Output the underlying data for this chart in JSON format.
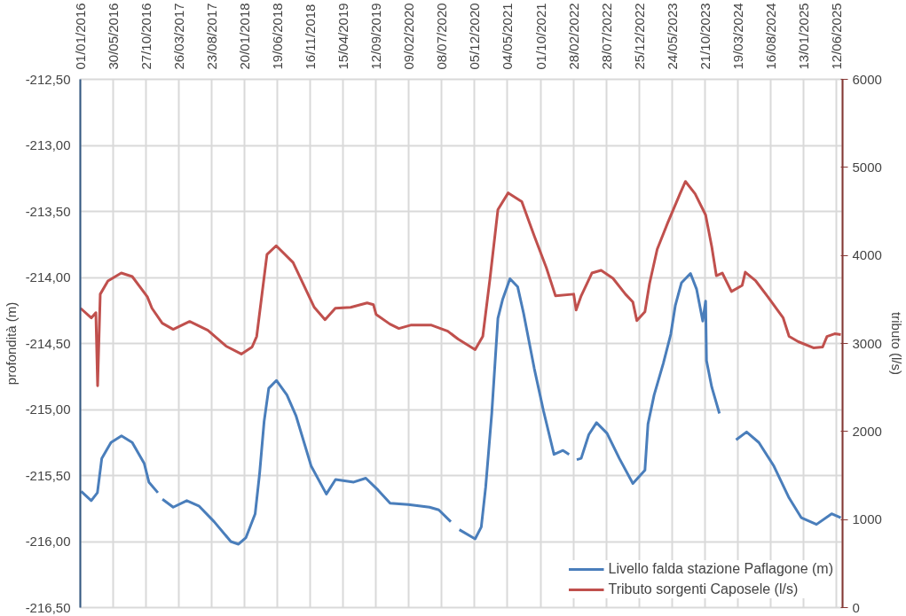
{
  "chart_data": {
    "type": "line",
    "ylabel": "profondità (m)",
    "y2label": "tributo (l/s)",
    "xlim": [
      "2016-01-01",
      "2025-07-11"
    ],
    "xticks": [
      {
        "value": "2016-01-01",
        "label": "01/01/2016"
      },
      {
        "value": "2016-05-30",
        "label": "30/05/2016"
      },
      {
        "value": "2016-10-27",
        "label": "27/10/2016"
      },
      {
        "value": "2017-03-26",
        "label": "26/03/2017"
      },
      {
        "value": "2017-08-23",
        "label": "23/08/2017"
      },
      {
        "value": "2018-01-20",
        "label": "20/01/2018"
      },
      {
        "value": "2018-06-19",
        "label": "19/06/2018"
      },
      {
        "value": "2018-11-16",
        "label": "16/11/2018"
      },
      {
        "value": "2019-04-15",
        "label": "15/04/2019"
      },
      {
        "value": "2019-09-12",
        "label": "12/09/2019"
      },
      {
        "value": "2020-02-09",
        "label": "09/02/2020"
      },
      {
        "value": "2020-07-08",
        "label": "08/07/2020"
      },
      {
        "value": "2020-12-05",
        "label": "05/12/2020"
      },
      {
        "value": "2021-05-04",
        "label": "04/05/2021"
      },
      {
        "value": "2021-10-01",
        "label": "01/10/2021"
      },
      {
        "value": "2022-02-28",
        "label": "28/02/2022"
      },
      {
        "value": "2022-07-28",
        "label": "28/07/2022"
      },
      {
        "value": "2022-12-25",
        "label": "25/12/2022"
      },
      {
        "value": "2023-05-24",
        "label": "24/05/2023"
      },
      {
        "value": "2023-10-21",
        "label": "21/10/2023"
      },
      {
        "value": "2024-03-19",
        "label": "19/03/2024"
      },
      {
        "value": "2024-08-16",
        "label": "16/08/2024"
      },
      {
        "value": "2025-01-13",
        "label": "13/01/2025"
      },
      {
        "value": "2025-06-12",
        "label": "12/06/2025"
      }
    ],
    "ylim": [
      -216.5,
      -212.5
    ],
    "yticks": [
      {
        "value": -216.5,
        "label": "-216,50"
      },
      {
        "value": -216.0,
        "label": "-216,00"
      },
      {
        "value": -215.5,
        "label": "-215,50"
      },
      {
        "value": -215.0,
        "label": "-215,00"
      },
      {
        "value": -214.5,
        "label": "-214,50"
      },
      {
        "value": -214.0,
        "label": "-214,00"
      },
      {
        "value": -213.5,
        "label": "-213,50"
      },
      {
        "value": -213.0,
        "label": "-213,00"
      },
      {
        "value": -212.5,
        "label": "-212,50"
      }
    ],
    "y2lim": [
      0,
      6000
    ],
    "y2ticks": [
      0,
      1000,
      2000,
      3000,
      4000,
      5000,
      6000
    ],
    "grid": true,
    "legend": "bottom right",
    "series": [
      {
        "name": "Livello falda stazione Paflagone (m)",
        "color": "#4a7ebb",
        "x": [
          "2016-01-05",
          "2016-02-20",
          "2016-03-19",
          "2016-04-08",
          "2016-05-20",
          "2016-07-07",
          "2016-08-25",
          "2016-10-19",
          "2016-11-09",
          "2016-12-20",
          "2016-12-30",
          "2017-01-10",
          "2017-02-28",
          "2017-05-01",
          "2017-06-25",
          "2017-09-03",
          "2017-11-18",
          "2017-12-23",
          "2018-01-26",
          "2018-03-09",
          "2018-03-29",
          "2018-04-19",
          "2018-05-10",
          "2018-06-14",
          "2018-08-01",
          "2018-09-12",
          "2018-11-20",
          "2019-01-28",
          "2019-03-11",
          "2019-06-02",
          "2019-07-27",
          "2019-09-21",
          "2019-11-15",
          "2020-02-06",
          "2020-05-13",
          "2020-06-24",
          "2020-08-18",
          "2020-09-06",
          "2020-09-26",
          "2020-12-07",
          "2021-01-04",
          "2021-01-24",
          "2021-02-21",
          "2021-03-21",
          "2021-04-11",
          "2021-05-15",
          "2021-06-19",
          "2021-07-16",
          "2021-09-03",
          "2021-10-15",
          "2021-12-02",
          "2022-01-12",
          "2022-02-09",
          "2022-02-28",
          "2022-03-16",
          "2022-04-05",
          "2022-05-10",
          "2022-06-14",
          "2022-08-01",
          "2022-09-26",
          "2022-11-27",
          "2023-01-21",
          "2023-02-04",
          "2023-03-04",
          "2023-04-15",
          "2023-05-19",
          "2023-06-09",
          "2023-07-07",
          "2023-08-17",
          "2023-09-14",
          "2023-10-12",
          "2023-10-25",
          "2023-10-29",
          "2023-11-22",
          "2023-12-27",
          "2024-02-03",
          "2024-03-12",
          "2024-04-29",
          "2024-06-24",
          "2024-09-01",
          "2024-11-09",
          "2025-01-04",
          "2025-03-14",
          "2025-05-22",
          "2025-07-03"
        ],
        "values": [
          -215.62,
          -215.69,
          -215.63,
          -215.37,
          -215.25,
          -215.2,
          -215.25,
          -215.41,
          -215.55,
          -215.63,
          null,
          -215.68,
          -215.74,
          -215.69,
          -215.73,
          -215.85,
          -216.0,
          -216.02,
          -215.97,
          -215.79,
          -215.49,
          -215.09,
          -214.84,
          -214.78,
          -214.89,
          -215.05,
          -215.43,
          -215.64,
          -215.53,
          -215.55,
          -215.52,
          -215.61,
          -215.71,
          -215.72,
          -215.74,
          -215.76,
          -215.85,
          null,
          -215.91,
          -215.98,
          -215.89,
          -215.59,
          -215.03,
          -214.31,
          -214.17,
          -214.01,
          -214.07,
          -214.27,
          -214.69,
          -215.01,
          -215.34,
          -215.31,
          -215.34,
          null,
          -215.38,
          -215.37,
          -215.19,
          -215.1,
          -215.18,
          -215.37,
          -215.56,
          -215.46,
          -215.11,
          -214.89,
          -214.65,
          -214.43,
          -214.21,
          -214.04,
          -213.97,
          -214.09,
          -214.33,
          -214.18,
          -214.63,
          -214.83,
          -215.03,
          null,
          -215.23,
          -215.17,
          -215.25,
          -215.43,
          -215.67,
          -215.82,
          -215.87,
          -215.79,
          -215.82
        ]
      },
      {
        "name": "Tributo sorgenti Caposele (l/s)",
        "color": "#c0504d",
        "axis": "y2",
        "x": [
          "2016-01-02",
          "2016-02-20",
          "2016-03-12",
          "2016-03-20",
          "2016-04-01",
          "2016-05-06",
          "2016-07-06",
          "2016-08-25",
          "2016-11-02",
          "2016-11-23",
          "2017-01-09",
          "2017-02-28",
          "2017-05-14",
          "2017-08-05",
          "2017-10-27",
          "2018-01-05",
          "2018-02-23",
          "2018-03-16",
          "2018-05-02",
          "2018-06-13",
          "2018-08-29",
          "2018-12-04",
          "2019-01-22",
          "2019-03-10",
          "2019-05-19",
          "2019-08-02",
          "2019-08-31",
          "2019-09-12",
          "2019-11-14",
          "2019-12-25",
          "2020-02-20",
          "2020-05-19",
          "2020-08-04",
          "2020-09-20",
          "2020-12-07",
          "2021-01-11",
          "2021-02-13",
          "2021-03-21",
          "2021-05-07",
          "2021-07-08",
          "2021-09-03",
          "2021-10-28",
          "2021-12-09",
          "2022-03-02",
          "2022-03-13",
          "2022-04-05",
          "2022-05-24",
          "2022-07-05",
          "2022-08-28",
          "2022-10-24",
          "2022-11-27",
          "2022-12-15",
          "2023-01-21",
          "2023-02-11",
          "2023-03-18",
          "2023-05-05",
          "2023-06-30",
          "2023-07-25",
          "2023-09-07",
          "2023-10-25",
          "2023-11-22",
          "2023-12-13",
          "2024-01-09",
          "2024-02-20",
          "2024-04-09",
          "2024-04-23",
          "2024-06-10",
          "2024-08-04",
          "2024-10-13",
          "2024-11-09",
          "2024-12-21",
          "2025-02-28",
          "2025-04-11",
          "2025-05-01",
          "2025-06-05",
          "2025-07-03"
        ],
        "values": [
          3400,
          3290,
          3350,
          2520,
          3560,
          3710,
          3800,
          3760,
          3530,
          3400,
          3230,
          3160,
          3250,
          3150,
          2970,
          2880,
          2960,
          3080,
          4010,
          4110,
          3920,
          3410,
          3270,
          3400,
          3410,
          3460,
          3440,
          3330,
          3220,
          3170,
          3210,
          3210,
          3140,
          3050,
          2930,
          3080,
          3740,
          4520,
          4710,
          4610,
          4220,
          3860,
          3540,
          3560,
          3380,
          3540,
          3800,
          3830,
          3740,
          3560,
          3470,
          3260,
          3360,
          3680,
          4070,
          4370,
          4700,
          4840,
          4700,
          4460,
          4100,
          3770,
          3800,
          3590,
          3660,
          3810,
          3710,
          3530,
          3290,
          3080,
          3020,
          2950,
          2960,
          3080,
          3110,
          3100
        ]
      }
    ]
  }
}
